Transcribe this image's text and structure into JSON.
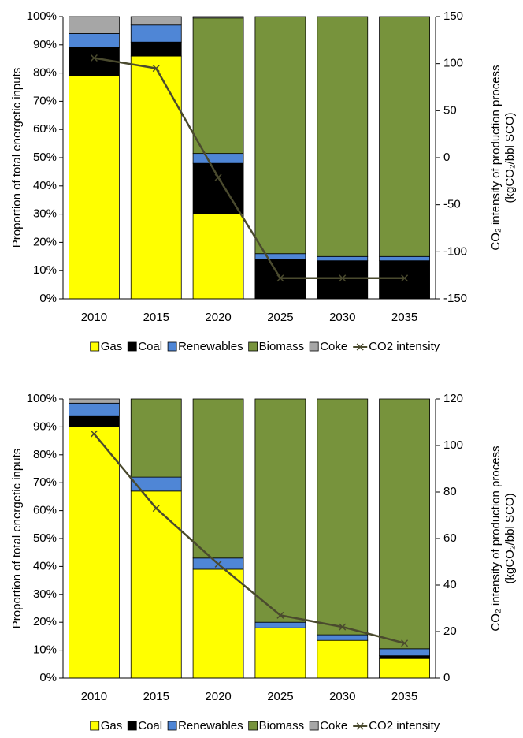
{
  "chart_data": [
    {
      "type": "bar",
      "stacked": true,
      "ylabel": "Proportion of total energetic inputs",
      "y2label": [
        "CO₂ intensity of production process",
        "(kgCO₂/bbl SCO)"
      ],
      "categories": [
        "2010",
        "2015",
        "2020",
        "2025",
        "2030",
        "2035"
      ],
      "series": [
        {
          "name": "Gas",
          "color": "#ffff00",
          "values": [
            79,
            86,
            30,
            0,
            0,
            0
          ]
        },
        {
          "name": "Coal",
          "color": "#000000",
          "values": [
            10,
            5,
            18,
            14,
            13.5,
            13.5
          ]
        },
        {
          "name": "Renewables",
          "color": "#4f86d6",
          "values": [
            5,
            6,
            3.5,
            2,
            1.5,
            1.5
          ]
        },
        {
          "name": "Biomass",
          "color": "#77933c",
          "values": [
            0,
            0,
            48,
            84,
            85,
            85
          ]
        },
        {
          "name": "Coke",
          "color": "#a6a6a6",
          "values": [
            6,
            3,
            0.5,
            0,
            0,
            0
          ]
        },
        {
          "name": "CO2 intensity",
          "color": "#4a4a2e",
          "type": "line",
          "marker": "x",
          "axis": "y2",
          "values": [
            106,
            95,
            -21,
            -128,
            -128,
            -128
          ]
        }
      ],
      "ylim": [
        0,
        100
      ],
      "yticks": [
        {
          "value": 0,
          "label": "0%"
        },
        {
          "value": 10,
          "label": "10%"
        },
        {
          "value": 20,
          "label": "20%"
        },
        {
          "value": 30,
          "label": "30%"
        },
        {
          "value": 40,
          "label": "40%"
        },
        {
          "value": 50,
          "label": "50%"
        },
        {
          "value": 60,
          "label": "60%"
        },
        {
          "value": 70,
          "label": "70%"
        },
        {
          "value": 80,
          "label": "80%"
        },
        {
          "value": 90,
          "label": "90%"
        },
        {
          "value": 100,
          "label": "100%"
        }
      ],
      "y2lim": [
        -150,
        150
      ],
      "y2ticks": [
        -150,
        -100,
        -50,
        0,
        50,
        100,
        150
      ],
      "grid": false,
      "legend": "bottom"
    },
    {
      "type": "bar",
      "stacked": true,
      "ylabel": "Proportion of total energetic inputs",
      "y2label": [
        "CO₂ intensity of production process",
        "(kgCO₂/bbl SCO)"
      ],
      "categories": [
        "2010",
        "2015",
        "2020",
        "2025",
        "2030",
        "2035"
      ],
      "series": [
        {
          "name": "Gas",
          "color": "#ffff00",
          "values": [
            90,
            67,
            39,
            18,
            13.5,
            7
          ]
        },
        {
          "name": "Coal",
          "color": "#000000",
          "values": [
            4,
            0,
            0,
            0,
            0,
            1
          ]
        },
        {
          "name": "Renewables",
          "color": "#4f86d6",
          "values": [
            4.5,
            5,
            4,
            2,
            2,
            2.5
          ]
        },
        {
          "name": "Biomass",
          "color": "#77933c",
          "values": [
            0,
            28,
            57,
            80,
            84.5,
            89.5
          ]
        },
        {
          "name": "Coke",
          "color": "#a6a6a6",
          "values": [
            1.5,
            0,
            0,
            0,
            0,
            0
          ]
        },
        {
          "name": "CO2 intensity",
          "color": "#4a4a2e",
          "type": "line",
          "marker": "x",
          "axis": "y2",
          "values": [
            105,
            73,
            49,
            27,
            22,
            15
          ]
        }
      ],
      "ylim": [
        0,
        100
      ],
      "yticks": [
        {
          "value": 0,
          "label": "0%"
        },
        {
          "value": 10,
          "label": "10%"
        },
        {
          "value": 20,
          "label": "20%"
        },
        {
          "value": 30,
          "label": "30%"
        },
        {
          "value": 40,
          "label": "40%"
        },
        {
          "value": 50,
          "label": "50%"
        },
        {
          "value": 60,
          "label": "60%"
        },
        {
          "value": 70,
          "label": "70%"
        },
        {
          "value": 80,
          "label": "80%"
        },
        {
          "value": 90,
          "label": "90%"
        },
        {
          "value": 100,
          "label": "100%"
        }
      ],
      "y2lim": [
        0,
        120
      ],
      "y2ticks": [
        0,
        20,
        40,
        60,
        80,
        100,
        120
      ],
      "grid": false,
      "legend": "bottom"
    }
  ]
}
